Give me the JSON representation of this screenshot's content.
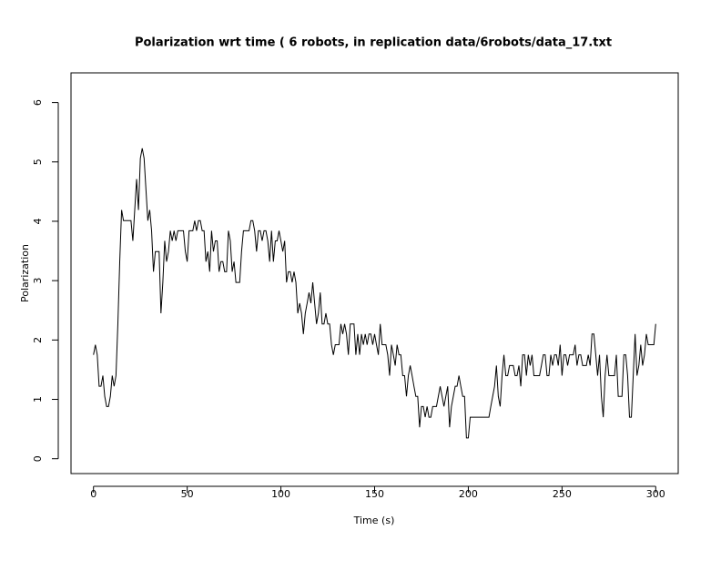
{
  "chart_data": {
    "type": "line",
    "title": "Polarization wrt time ( 6 robots, in replication  data/6robots/data_17.txt",
    "xlabel": "Time (s)",
    "ylabel": "Polarization",
    "color": "#000000",
    "xlim": [
      -12,
      312
    ],
    "ylim": [
      -0.25,
      6.5
    ],
    "xticks": [
      0,
      50,
      100,
      150,
      200,
      250,
      300
    ],
    "yticks": [
      0,
      1,
      2,
      3,
      4,
      5,
      6
    ],
    "x": [
      0,
      1,
      2,
      3,
      4,
      5,
      6,
      7,
      8,
      9,
      10,
      11,
      12,
      13,
      14,
      15,
      16,
      17,
      18,
      19,
      20,
      21,
      22,
      23,
      24,
      25,
      26,
      27,
      28,
      29,
      30,
      31,
      32,
      33,
      34,
      35,
      36,
      37,
      38,
      39,
      40,
      41,
      42,
      43,
      44,
      45,
      46,
      47,
      48,
      49,
      50,
      51,
      52,
      53,
      54,
      55,
      56,
      57,
      58,
      59,
      60,
      61,
      62,
      63,
      64,
      65,
      66,
      67,
      68,
      69,
      70,
      71,
      72,
      73,
      74,
      75,
      76,
      77,
      78,
      79,
      80,
      81,
      82,
      83,
      84,
      85,
      86,
      87,
      88,
      89,
      90,
      91,
      92,
      93,
      94,
      95,
      96,
      97,
      98,
      99,
      100,
      101,
      102,
      103,
      104,
      105,
      106,
      107,
      108,
      109,
      110,
      111,
      112,
      113,
      114,
      115,
      116,
      117,
      118,
      119,
      120,
      121,
      122,
      123,
      124,
      125,
      126,
      127,
      128,
      129,
      130,
      131,
      132,
      133,
      134,
      135,
      136,
      137,
      138,
      139,
      140,
      141,
      142,
      143,
      144,
      145,
      146,
      147,
      148,
      149,
      150,
      151,
      152,
      153,
      154,
      155,
      156,
      157,
      158,
      159,
      160,
      161,
      162,
      163,
      164,
      165,
      166,
      167,
      168,
      169,
      170,
      171,
      172,
      173,
      174,
      175,
      176,
      177,
      178,
      179,
      180,
      181,
      182,
      183,
      184,
      185,
      186,
      187,
      188,
      189,
      190,
      191,
      192,
      193,
      194,
      195,
      196,
      197,
      198,
      199,
      200,
      201,
      202,
      203,
      204,
      205,
      206,
      207,
      208,
      209,
      210,
      211,
      212,
      213,
      214,
      215,
      216,
      217,
      218,
      219,
      220,
      221,
      222,
      223,
      224,
      225,
      226,
      227,
      228,
      229,
      230,
      231,
      232,
      233,
      234,
      235,
      236,
      237,
      238,
      239,
      240,
      241,
      242,
      243,
      244,
      245,
      246,
      247,
      248,
      249,
      250,
      251,
      252,
      253,
      254,
      255,
      256,
      257,
      258,
      259,
      260,
      261,
      262,
      263,
      264,
      265,
      266,
      267,
      268,
      269,
      270,
      271,
      272,
      273,
      274,
      275,
      276,
      277,
      278,
      279,
      280,
      281,
      282,
      283,
      284,
      285,
      286,
      287,
      288,
      289,
      290,
      291,
      292,
      293,
      294,
      295,
      296,
      297,
      298,
      299,
      300
    ],
    "values": [
      1.75,
      1.92,
      1.75,
      1.22,
      1.22,
      1.4,
      1.05,
      0.88,
      0.88,
      1.05,
      1.4,
      1.22,
      1.4,
      2.27,
      3.32,
      4.19,
      4.01,
      4.01,
      4.01,
      4.01,
      4.01,
      3.67,
      4.19,
      4.71,
      4.19,
      5.06,
      5.23,
      5.06,
      4.53,
      4.01,
      4.19,
      3.84,
      3.15,
      3.49,
      3.49,
      3.49,
      2.45,
      2.97,
      3.67,
      3.32,
      3.49,
      3.84,
      3.67,
      3.84,
      3.67,
      3.84,
      3.84,
      3.84,
      3.84,
      3.49,
      3.32,
      3.84,
      3.84,
      3.84,
      4.01,
      3.84,
      4.01,
      4.01,
      3.84,
      3.84,
      3.32,
      3.49,
      3.15,
      3.84,
      3.49,
      3.67,
      3.67,
      3.15,
      3.32,
      3.32,
      3.15,
      3.15,
      3.84,
      3.67,
      3.15,
      3.32,
      2.97,
      2.97,
      2.97,
      3.49,
      3.84,
      3.84,
      3.84,
      3.84,
      4.01,
      4.01,
      3.84,
      3.49,
      3.84,
      3.84,
      3.67,
      3.84,
      3.84,
      3.67,
      3.32,
      3.84,
      3.32,
      3.67,
      3.67,
      3.84,
      3.67,
      3.49,
      3.67,
      2.97,
      3.15,
      3.15,
      2.97,
      3.15,
      2.97,
      2.45,
      2.62,
      2.45,
      2.1,
      2.45,
      2.62,
      2.8,
      2.62,
      2.97,
      2.62,
      2.27,
      2.45,
      2.8,
      2.27,
      2.27,
      2.45,
      2.27,
      2.27,
      1.92,
      1.75,
      1.92,
      1.92,
      1.92,
      2.27,
      2.1,
      2.27,
      2.1,
      1.75,
      2.27,
      2.27,
      2.27,
      1.75,
      2.1,
      1.75,
      2.1,
      1.92,
      2.1,
      1.92,
      2.1,
      2.1,
      1.92,
      2.1,
      1.92,
      1.75,
      2.27,
      1.92,
      1.92,
      1.92,
      1.75,
      1.4,
      1.92,
      1.75,
      1.57,
      1.92,
      1.75,
      1.75,
      1.4,
      1.4,
      1.05,
      1.4,
      1.57,
      1.4,
      1.22,
      1.05,
      1.05,
      0.53,
      0.88,
      0.88,
      0.7,
      0.88,
      0.7,
      0.7,
      0.88,
      0.88,
      0.88,
      1.05,
      1.22,
      1.05,
      0.88,
      1.05,
      1.22,
      0.53,
      0.88,
      1.05,
      1.22,
      1.22,
      1.4,
      1.22,
      1.05,
      1.05,
      0.35,
      0.35,
      0.7,
      0.7,
      0.7,
      0.7,
      0.7,
      0.7,
      0.7,
      0.7,
      0.7,
      0.7,
      0.7,
      0.88,
      1.05,
      1.22,
      1.57,
      1.05,
      0.88,
      1.4,
      1.75,
      1.4,
      1.4,
      1.57,
      1.57,
      1.57,
      1.4,
      1.4,
      1.57,
      1.22,
      1.75,
      1.75,
      1.4,
      1.75,
      1.57,
      1.75,
      1.4,
      1.4,
      1.4,
      1.4,
      1.57,
      1.75,
      1.75,
      1.4,
      1.4,
      1.75,
      1.57,
      1.75,
      1.75,
      1.57,
      1.92,
      1.4,
      1.75,
      1.75,
      1.57,
      1.75,
      1.75,
      1.75,
      1.92,
      1.57,
      1.75,
      1.75,
      1.57,
      1.57,
      1.57,
      1.75,
      1.57,
      2.1,
      2.1,
      1.75,
      1.4,
      1.75,
      1.05,
      0.7,
      1.4,
      1.75,
      1.4,
      1.4,
      1.4,
      1.4,
      1.75,
      1.05,
      1.05,
      1.05,
      1.75,
      1.75,
      1.4,
      0.7,
      0.7,
      1.4,
      2.1,
      1.4,
      1.57,
      1.92,
      1.57,
      1.75,
      2.1,
      1.92,
      1.92,
      1.92,
      1.92,
      2.27
    ]
  }
}
